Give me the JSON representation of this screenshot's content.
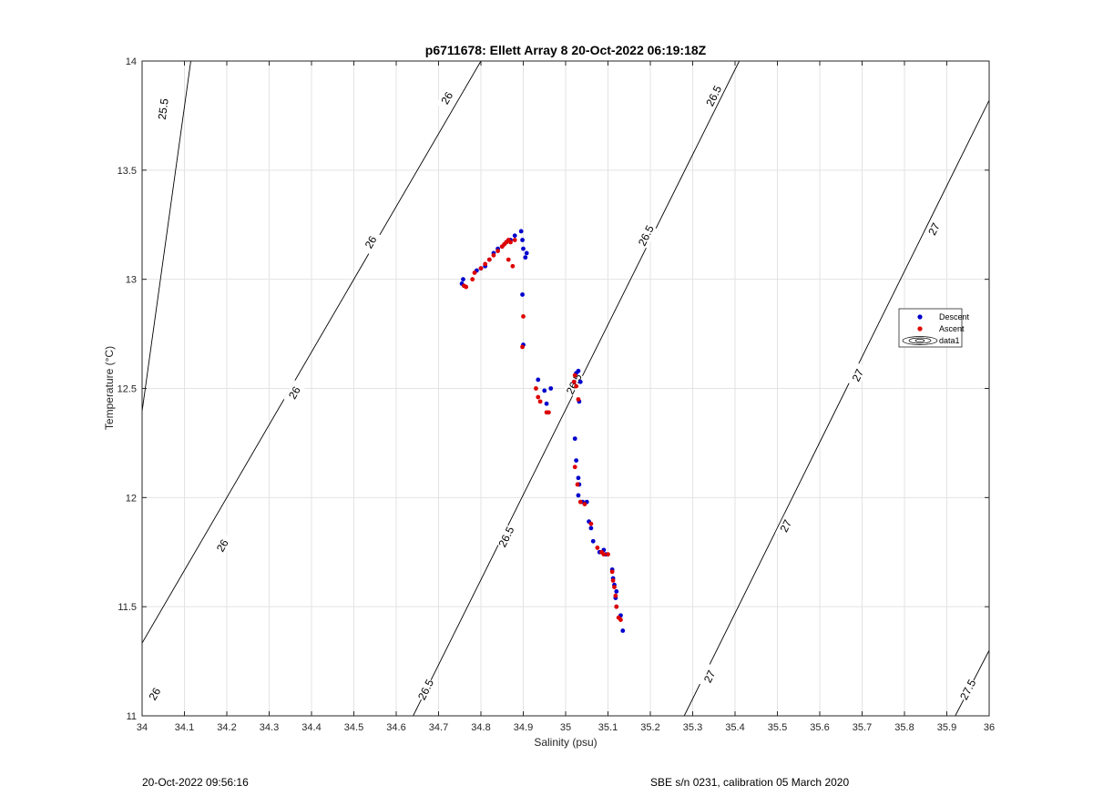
{
  "chart_data": {
    "type": "scatter",
    "title": "p6711678: Ellett Array 8 20-Oct-2022 06:19:18Z",
    "xlabel": "Salinity (psu)",
    "ylabel": "Temperature (°C)",
    "xlim": [
      34,
      36
    ],
    "ylim": [
      11,
      14
    ],
    "xticks": [
      34,
      34.1,
      34.2,
      34.3,
      34.4,
      34.5,
      34.6,
      34.7,
      34.8,
      34.9,
      35,
      35.1,
      35.2,
      35.3,
      35.4,
      35.5,
      35.6,
      35.7,
      35.8,
      35.9,
      36
    ],
    "xtick_labels": [
      "34",
      "34.1",
      "34.2",
      "34.3",
      "34.4",
      "34.5",
      "34.6",
      "34.7",
      "34.8",
      "34.9",
      "35",
      "35.1",
      "35.2",
      "35.3",
      "35.4",
      "35.5",
      "35.6",
      "35.7",
      "35.8",
      "35.9",
      "36"
    ],
    "yticks": [
      11,
      11.5,
      12,
      12.5,
      13,
      13.5,
      14
    ],
    "ytick_labels": [
      "11",
      "11.5",
      "12",
      "12.5",
      "13",
      "13.5",
      "14"
    ],
    "grid": true,
    "legend_position": "right",
    "series": [
      {
        "name": "Descent",
        "color": "#0000cc",
        "marker": "dot",
        "points": [
          [
            34.755,
            12.98
          ],
          [
            34.758,
            13.0
          ],
          [
            34.79,
            13.04
          ],
          [
            34.8,
            13.05
          ],
          [
            34.81,
            13.06
          ],
          [
            34.82,
            13.09
          ],
          [
            34.83,
            13.12
          ],
          [
            34.84,
            13.14
          ],
          [
            34.85,
            13.15
          ],
          [
            34.86,
            13.17
          ],
          [
            34.87,
            13.18
          ],
          [
            34.88,
            13.2
          ],
          [
            34.895,
            13.22
          ],
          [
            34.898,
            13.18
          ],
          [
            34.9,
            13.14
          ],
          [
            34.905,
            13.1
          ],
          [
            34.908,
            13.12
          ],
          [
            34.898,
            12.93
          ],
          [
            34.9,
            12.7
          ],
          [
            34.935,
            12.54
          ],
          [
            34.95,
            12.49
          ],
          [
            34.955,
            12.43
          ],
          [
            34.965,
            12.5
          ],
          [
            35.02,
            12.53
          ],
          [
            35.025,
            12.57
          ],
          [
            35.03,
            12.58
          ],
          [
            35.035,
            12.53
          ],
          [
            35.032,
            12.44
          ],
          [
            35.022,
            12.27
          ],
          [
            35.025,
            12.17
          ],
          [
            35.03,
            12.09
          ],
          [
            35.032,
            12.06
          ],
          [
            35.03,
            12.01
          ],
          [
            35.04,
            11.98
          ],
          [
            35.05,
            11.98
          ],
          [
            35.055,
            11.89
          ],
          [
            35.06,
            11.86
          ],
          [
            35.065,
            11.8
          ],
          [
            35.08,
            11.75
          ],
          [
            35.09,
            11.76
          ],
          [
            35.095,
            11.74
          ],
          [
            35.11,
            11.67
          ],
          [
            35.112,
            11.63
          ],
          [
            35.115,
            11.6
          ],
          [
            35.12,
            11.57
          ],
          [
            35.118,
            11.54
          ],
          [
            35.12,
            11.5
          ],
          [
            35.13,
            11.46
          ],
          [
            35.135,
            11.39
          ]
        ]
      },
      {
        "name": "Ascent",
        "color": "#dd0000",
        "marker": "dot",
        "points": [
          [
            34.76,
            12.97
          ],
          [
            34.765,
            12.965
          ],
          [
            34.78,
            13.0
          ],
          [
            34.785,
            13.03
          ],
          [
            34.8,
            13.05
          ],
          [
            34.81,
            13.07
          ],
          [
            34.82,
            13.09
          ],
          [
            34.83,
            13.11
          ],
          [
            34.84,
            13.13
          ],
          [
            34.85,
            13.15
          ],
          [
            34.855,
            13.16
          ],
          [
            34.86,
            13.17
          ],
          [
            34.865,
            13.18
          ],
          [
            34.87,
            13.17
          ],
          [
            34.88,
            13.18
          ],
          [
            34.865,
            13.09
          ],
          [
            34.875,
            13.06
          ],
          [
            34.9,
            12.83
          ],
          [
            34.898,
            12.69
          ],
          [
            34.93,
            12.5
          ],
          [
            34.935,
            12.46
          ],
          [
            34.94,
            12.44
          ],
          [
            34.955,
            12.39
          ],
          [
            34.96,
            12.39
          ],
          [
            35.02,
            12.53
          ],
          [
            35.022,
            12.56
          ],
          [
            35.025,
            12.51
          ],
          [
            35.03,
            12.45
          ],
          [
            35.022,
            12.14
          ],
          [
            35.028,
            12.06
          ],
          [
            35.035,
            11.98
          ],
          [
            35.045,
            11.97
          ],
          [
            35.06,
            11.88
          ],
          [
            35.075,
            11.77
          ],
          [
            35.085,
            11.75
          ],
          [
            35.09,
            11.74
          ],
          [
            35.1,
            11.74
          ],
          [
            35.11,
            11.66
          ],
          [
            35.112,
            11.62
          ],
          [
            35.115,
            11.59
          ],
          [
            35.118,
            11.55
          ],
          [
            35.12,
            11.5
          ],
          [
            35.125,
            11.45
          ],
          [
            35.13,
            11.44
          ]
        ]
      }
    ],
    "legend": [
      {
        "label": "Descent",
        "color": "#0000cc"
      },
      {
        "label": "Ascent",
        "color": "#dd0000"
      },
      {
        "label": "data1",
        "color": "#000000"
      }
    ],
    "contours": [
      {
        "level": 25.5,
        "label": "25.5",
        "points": [
          [
            33.9,
            11.0
          ],
          [
            34.115,
            14.0
          ]
        ],
        "labels_at": [
          [
            34.05,
            13.78
          ]
        ]
      },
      {
        "level": 26,
        "label": "26",
        "points": [
          [
            33.9,
            11.0
          ],
          [
            34.8,
            14.0
          ]
        ],
        "labels_at": [
          [
            34.03,
            11.1
          ],
          [
            34.19,
            11.78
          ],
          [
            34.36,
            12.48
          ],
          [
            34.54,
            13.17
          ],
          [
            34.72,
            13.83
          ]
        ]
      },
      {
        "level": 26.5,
        "label": "26.5",
        "points": [
          [
            34.64,
            11.0
          ],
          [
            35.41,
            14.0
          ]
        ],
        "labels_at": [
          [
            34.67,
            11.12
          ],
          [
            34.86,
            11.82
          ],
          [
            35.02,
            12.52
          ],
          [
            35.19,
            13.2
          ],
          [
            35.35,
            13.84
          ]
        ]
      },
      {
        "level": 27,
        "label": "27",
        "points": [
          [
            35.28,
            11.0
          ],
          [
            36.0,
            13.82
          ]
        ],
        "labels_at": [
          [
            35.34,
            11.18
          ],
          [
            35.52,
            11.87
          ],
          [
            35.69,
            12.56
          ],
          [
            35.87,
            13.23
          ]
        ]
      },
      {
        "level": 27.5,
        "label": "27.5",
        "points": [
          [
            35.92,
            11.0
          ],
          [
            36.0,
            11.3
          ]
        ],
        "labels_at": [
          [
            35.95,
            11.12
          ]
        ]
      }
    ]
  },
  "footer": {
    "left": "20-Oct-2022 09:56:16",
    "right": "SBE s/n 0231, calibration 05 March 2020"
  }
}
